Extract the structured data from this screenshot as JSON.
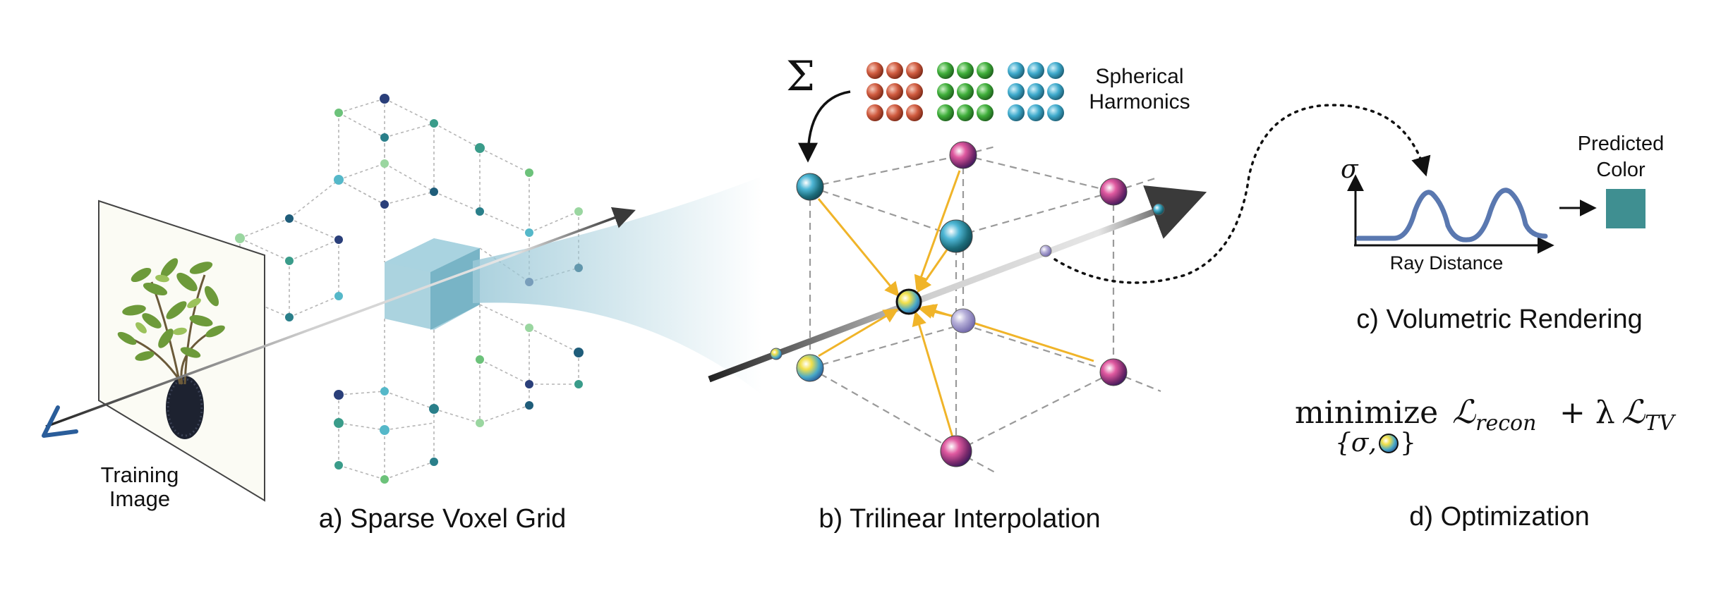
{
  "panels": {
    "a": {
      "caption": "a) Sparse Voxel Grid",
      "image_label_line1": "Training",
      "image_label_line2": "Image"
    },
    "b": {
      "caption": "b) Trilinear Interpolation",
      "sigma_symbol": "Σ",
      "sh_label_line1": "Spherical",
      "sh_label_line2": "Harmonics"
    },
    "c": {
      "caption": "c) Volumetric Rendering",
      "y_symbol": "σ",
      "x_label": "Ray Distance",
      "output_line1": "Predicted",
      "output_line2": "Color"
    },
    "d": {
      "caption": "d) Optimization",
      "minimize": "minimize",
      "loss_recon_L": "ℒ",
      "loss_recon_sub": "recon",
      "plus": "+ λ",
      "loss_tv_L": "ℒ",
      "loss_tv_sub": "TV",
      "params_open": "{σ,",
      "params_close": "}"
    }
  },
  "colors": {
    "ray": "#3a3a3a",
    "arrow_interp": "#f0b429",
    "voxel_fill": "#8fc4d4",
    "predicted_color": "#3f8f91",
    "curve": "#5a78b0",
    "eye": "#2a5d9a",
    "sh_red": "#c9553c",
    "sh_green": "#3faa3a",
    "sh_blue": "#3fa9c9"
  }
}
